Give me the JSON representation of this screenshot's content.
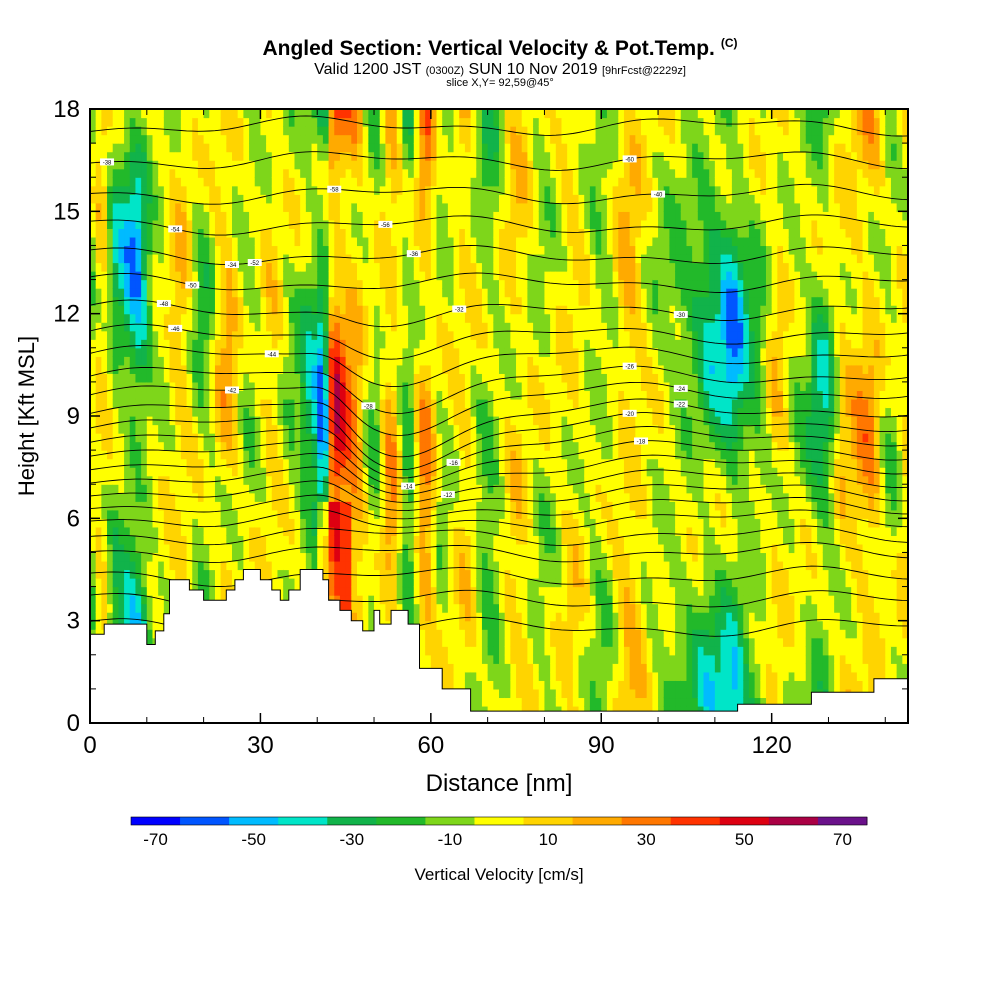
{
  "header": {
    "title": "Angled Section: Vertical Velocity & Pot.Temp.",
    "title_mark": "(C)",
    "valid_prefix": "Valid 1200 JST",
    "valid_utc": "(0300Z)",
    "valid_date": "SUN 10 Nov 2019",
    "forecast_info": "[9hrFcst@2229z]",
    "slice": "slice X,Y= 92,59@45°"
  },
  "chart_data": {
    "type": "heatmap",
    "xlabel": "Distance [nm]",
    "ylabel": "Height [Kft MSL]",
    "xlim": [
      0,
      144
    ],
    "ylim": [
      0,
      18
    ],
    "x_ticks": [
      0,
      30,
      60,
      90,
      120
    ],
    "y_ticks": [
      0,
      3,
      6,
      9,
      12,
      15,
      18
    ],
    "grid": false,
    "colorbar": {
      "label": "Vertical Velocity [cm/s]",
      "placement": "bottom",
      "range": [
        -75,
        75
      ],
      "tick_values": [
        -70,
        -50,
        -30,
        -10,
        10,
        30,
        50,
        70
      ],
      "tick_labels": [
        "-70",
        "-50",
        "-30",
        "-10",
        "10",
        "30",
        "50",
        "70"
      ],
      "colors": [
        "#0000ff",
        "#0055ff",
        "#00bbff",
        "#00e5c8",
        "#11b34a",
        "#22b92a",
        "#7ed61a",
        "#ffff00",
        "#ffd400",
        "#ffaa00",
        "#ff7700",
        "#ff3300",
        "#dd0011",
        "#aa0044",
        "#6a118a"
      ]
    },
    "columns": [
      {
        "x": 0,
        "w": -10
      },
      {
        "x": 2,
        "w": 10
      },
      {
        "x": 5,
        "w": -35
      },
      {
        "x": 8,
        "w": -55
      },
      {
        "x": 12,
        "w": -8
      },
      {
        "x": 16,
        "w": 15
      },
      {
        "x": 20,
        "w": -20
      },
      {
        "x": 24,
        "w": 20
      },
      {
        "x": 28,
        "w": -12
      },
      {
        "x": 32,
        "w": 10
      },
      {
        "x": 36,
        "w": -15
      },
      {
        "x": 39,
        "w": -40
      },
      {
        "x": 41,
        "w": -65
      },
      {
        "x": 43,
        "w": 55
      },
      {
        "x": 46,
        "w": 35
      },
      {
        "x": 50,
        "w": -15
      },
      {
        "x": 53,
        "w": 25
      },
      {
        "x": 56,
        "w": -25
      },
      {
        "x": 59,
        "w": 30
      },
      {
        "x": 62,
        "w": -10
      },
      {
        "x": 66,
        "w": 10
      },
      {
        "x": 70,
        "w": -22
      },
      {
        "x": 75,
        "w": 12
      },
      {
        "x": 80,
        "w": -10
      },
      {
        "x": 85,
        "w": 8
      },
      {
        "x": 90,
        "w": -14
      },
      {
        "x": 95,
        "w": 18
      },
      {
        "x": 100,
        "w": -8
      },
      {
        "x": 105,
        "w": -20
      },
      {
        "x": 110,
        "w": -40
      },
      {
        "x": 113,
        "w": -55
      },
      {
        "x": 117,
        "w": -25
      },
      {
        "x": 121,
        "w": 10
      },
      {
        "x": 125,
        "w": -12
      },
      {
        "x": 129,
        "w": -35
      },
      {
        "x": 133,
        "w": 12
      },
      {
        "x": 137,
        "w": 25
      },
      {
        "x": 141,
        "w": -12
      },
      {
        "x": 144,
        "w": 8
      }
    ],
    "terrain": [
      [
        0,
        2.6
      ],
      [
        2.5,
        2.6
      ],
      [
        2.5,
        2.9
      ],
      [
        10,
        2.9
      ],
      [
        10,
        2.3
      ],
      [
        11.5,
        2.3
      ],
      [
        11.5,
        2.7
      ],
      [
        13,
        2.7
      ],
      [
        13,
        3.2
      ],
      [
        14,
        3.2
      ],
      [
        14,
        4.2
      ],
      [
        17.5,
        4.2
      ],
      [
        17.5,
        3.9
      ],
      [
        20,
        3.9
      ],
      [
        20,
        3.6
      ],
      [
        24,
        3.6
      ],
      [
        24,
        3.9
      ],
      [
        25.5,
        3.9
      ],
      [
        25.5,
        4.2
      ],
      [
        27,
        4.2
      ],
      [
        27,
        4.5
      ],
      [
        30,
        4.5
      ],
      [
        30,
        4.2
      ],
      [
        32,
        4.2
      ],
      [
        32,
        3.9
      ],
      [
        33.5,
        3.9
      ],
      [
        33.5,
        3.6
      ],
      [
        35,
        3.6
      ],
      [
        35,
        3.9
      ],
      [
        37,
        3.9
      ],
      [
        37,
        4.5
      ],
      [
        41,
        4.5
      ],
      [
        41,
        4.2
      ],
      [
        42,
        4.2
      ],
      [
        42,
        3.6
      ],
      [
        44,
        3.6
      ],
      [
        44,
        3.3
      ],
      [
        46,
        3.3
      ],
      [
        46,
        3.0
      ],
      [
        48,
        3.0
      ],
      [
        48,
        2.7
      ],
      [
        50,
        2.7
      ],
      [
        50,
        3.3
      ],
      [
        51,
        3.3
      ],
      [
        51,
        2.9
      ],
      [
        53,
        2.9
      ],
      [
        53,
        3.3
      ],
      [
        56,
        3.3
      ],
      [
        56,
        2.9
      ],
      [
        58,
        2.9
      ],
      [
        58,
        1.6
      ],
      [
        62,
        1.6
      ],
      [
        62,
        1.0
      ],
      [
        67,
        1.0
      ],
      [
        67,
        0.35
      ],
      [
        114,
        0.35
      ],
      [
        114,
        0.55
      ],
      [
        127,
        0.55
      ],
      [
        127,
        0.9
      ],
      [
        138,
        0.9
      ],
      [
        138,
        1.3
      ],
      [
        144,
        1.3
      ]
    ],
    "isotherm_base_heights": [
      2.8,
      3.6,
      4.3,
      5.0,
      5.5,
      6.0,
      6.4,
      6.8,
      7.2,
      7.6,
      8.0,
      8.4,
      8.8,
      9.2,
      9.7,
      10.2,
      10.8,
      11.4,
      12.1,
      12.9,
      13.7,
      14.6,
      15.5,
      16.5,
      17.5
    ],
    "isotherm_labels": [
      {
        "text": "-12",
        "x": 63,
        "level": 8
      },
      {
        "text": "-14",
        "x": 56,
        "level": 10
      },
      {
        "text": "-16",
        "x": 64,
        "level": 11
      },
      {
        "text": "-18",
        "x": 97,
        "level": 10
      },
      {
        "text": "-20",
        "x": 95,
        "level": 12
      },
      {
        "text": "-22",
        "x": 104,
        "level": 13
      },
      {
        "text": "-24",
        "x": 104,
        "level": 14
      },
      {
        "text": "-26",
        "x": 95,
        "level": 15
      },
      {
        "text": "-28",
        "x": 49,
        "level": 15
      },
      {
        "text": "-30",
        "x": 104,
        "level": 18
      },
      {
        "text": "-32",
        "x": 65,
        "level": 18
      },
      {
        "text": "-34",
        "x": 25,
        "level": 20
      },
      {
        "text": "-36",
        "x": 57,
        "level": 20
      },
      {
        "text": "-38",
        "x": 3,
        "level": 23
      },
      {
        "text": "-40",
        "x": 100,
        "level": 22
      },
      {
        "text": "-42",
        "x": 25,
        "level": 14
      },
      {
        "text": "-44",
        "x": 32,
        "level": 16
      },
      {
        "text": "-46",
        "x": 15,
        "level": 17
      },
      {
        "text": "-48",
        "x": 13,
        "level": 18
      },
      {
        "text": "-50",
        "x": 18,
        "level": 19
      },
      {
        "text": "-52",
        "x": 29,
        "level": 20
      },
      {
        "text": "-54",
        "x": 15,
        "level": 21
      },
      {
        "text": "-56",
        "x": 52,
        "level": 21
      },
      {
        "text": "-58",
        "x": 43,
        "level": 22
      },
      {
        "text": "-60",
        "x": 95,
        "level": 23
      }
    ]
  }
}
